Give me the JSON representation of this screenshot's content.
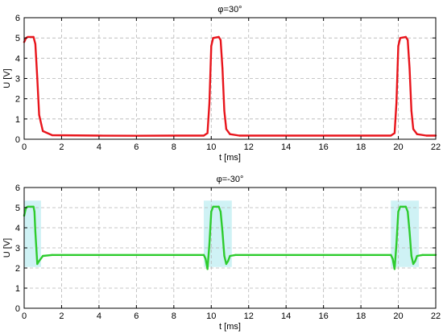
{
  "chart_data": [
    {
      "type": "line",
      "title": "φ=30°",
      "xlabel": "t [ms]",
      "ylabel": "U [V]",
      "xlim": [
        0,
        22
      ],
      "ylim": [
        0,
        6
      ],
      "xticks": [
        "0",
        "2",
        "4",
        "6",
        "8",
        "10",
        "12",
        "14",
        "16",
        "18",
        "20",
        "22"
      ],
      "yticks": [
        "0",
        "1",
        "2",
        "3",
        "4",
        "5",
        "6"
      ],
      "grid": true,
      "series": [
        {
          "color": "#e8141b",
          "x": [
            0.0,
            0.1,
            0.2,
            0.5,
            0.6,
            0.7,
            0.8,
            1.0,
            1.5,
            4,
            6,
            8,
            9.6,
            9.8,
            9.9,
            10.0,
            10.1,
            10.4,
            10.5,
            10.6,
            10.7,
            10.8,
            11.0,
            11.5,
            14,
            16,
            18,
            19.6,
            19.8,
            19.9,
            20.0,
            20.1,
            20.4,
            20.5,
            20.6,
            20.7,
            20.8,
            21.0,
            21.5,
            22.0
          ],
          "y": [
            4.8,
            5.0,
            5.05,
            5.05,
            4.7,
            3.0,
            1.2,
            0.4,
            0.2,
            0.18,
            0.17,
            0.18,
            0.18,
            0.3,
            1.8,
            4.6,
            5.0,
            5.05,
            4.9,
            3.5,
            1.4,
            0.5,
            0.25,
            0.18,
            0.18,
            0.18,
            0.18,
            0.18,
            0.3,
            1.8,
            4.6,
            5.0,
            5.05,
            4.9,
            3.5,
            1.4,
            0.5,
            0.25,
            0.18,
            0.18
          ]
        }
      ]
    },
    {
      "type": "line",
      "title": "φ=-30°",
      "xlabel": "t [ms]",
      "ylabel": "U [V]",
      "xlim": [
        0,
        22
      ],
      "ylim": [
        0,
        6
      ],
      "xticks": [
        "0",
        "2",
        "4",
        "6",
        "8",
        "10",
        "12",
        "14",
        "16",
        "18",
        "20",
        "22"
      ],
      "yticks": [
        "0",
        "1",
        "2",
        "3",
        "4",
        "5",
        "6"
      ],
      "grid": true,
      "highlight_color": "#bfeef2",
      "highlight_ranges": [
        [
          -0.1,
          0.9
        ],
        [
          9.6,
          11.1
        ],
        [
          19.6,
          21.1
        ]
      ],
      "series": [
        {
          "color": "#2ecc2e",
          "x": [
            0.0,
            0.1,
            0.2,
            0.5,
            0.55,
            0.6,
            0.7,
            0.8,
            1.0,
            1.5,
            4,
            6,
            8,
            9.6,
            9.7,
            9.8,
            9.9,
            10.0,
            10.1,
            10.4,
            10.5,
            10.6,
            10.7,
            10.8,
            10.9,
            11.0,
            11.3,
            14,
            16,
            18,
            19.6,
            19.7,
            19.8,
            19.9,
            20.0,
            20.1,
            20.4,
            20.5,
            20.6,
            20.7,
            20.8,
            20.9,
            21.0,
            21.3,
            22.0
          ],
          "y": [
            4.6,
            5.0,
            5.05,
            5.05,
            4.8,
            3.8,
            2.2,
            2.35,
            2.6,
            2.65,
            2.65,
            2.65,
            2.65,
            2.65,
            2.45,
            1.95,
            3.2,
            4.8,
            5.05,
            5.05,
            4.8,
            3.8,
            2.6,
            2.2,
            2.35,
            2.6,
            2.65,
            2.65,
            2.65,
            2.65,
            2.65,
            2.45,
            1.95,
            3.2,
            4.8,
            5.05,
            5.05,
            4.8,
            3.8,
            2.6,
            2.2,
            2.35,
            2.6,
            2.65,
            2.65
          ]
        }
      ]
    }
  ]
}
